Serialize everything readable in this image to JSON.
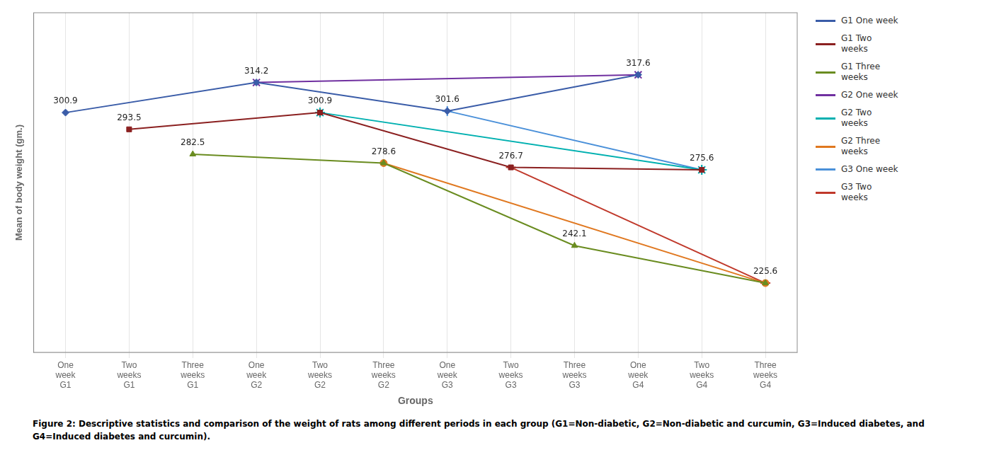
{
  "chart_data": {
    "type": "line",
    "xlabel": "Groups",
    "ylabel": "Mean of body weight (gm.)",
    "caption": "Figure 2: Descriptive statistics and comparison of the weight of rats among different periods in each group (G1=Non-diabetic, G2=Non-diabetic and curcumin, G3=Induced diabetes, and G4=Induced diabetes and curcumin).",
    "categories": [
      "One\nweek\nG1",
      "Two\nweeks\nG1",
      "Three\nweeks\nG1",
      "One\nweek\nG2",
      "Two\nweeks\nG2",
      "Three\nweeks\nG2",
      "One\nweek\nG3",
      "Two\nweeks\nG3",
      "Three\nweeks\nG3",
      "One\nweek\nG4",
      "Two\nweeks\nG4",
      "Three\nweeks\nG4"
    ],
    "series": [
      {
        "name": "G1 One week",
        "color": "#3a5ca8",
        "marker": "diamond",
        "x": [
          "One\nweek\nG1",
          "One\nweek\nG2",
          "One\nweek\nG3",
          "One\nweek\nG4"
        ],
        "values": [
          300.9,
          314.2,
          301.6,
          317.6
        ]
      },
      {
        "name": "G1 Two\nweeks",
        "color": "#8b2020",
        "marker": "square",
        "x": [
          "Two\nweeks\nG1",
          "Two\nweeks\nG2",
          "Two\nweeks\nG3",
          "Two\nweeks\nG4"
        ],
        "values": [
          293.5,
          300.9,
          276.7,
          275.6
        ]
      },
      {
        "name": "G1 Three\nweeks",
        "color": "#6a8c20",
        "marker": "triangle",
        "x": [
          "Three\nweeks\nG1",
          "Three\nweeks\nG2",
          "Three\nweeks\nG3",
          "Three\nweeks\nG4"
        ],
        "values": [
          282.5,
          278.6,
          242.1,
          225.6
        ]
      },
      {
        "name": "G2 One week",
        "color": "#7030a0",
        "marker": "x",
        "x": [
          "One\nweek\nG2",
          "One\nweek\nG4"
        ],
        "values": [
          314.2,
          317.6
        ]
      },
      {
        "name": "G2 Two\nweeks",
        "color": "#00b0b0",
        "marker": "star",
        "x": [
          "Two\nweeks\nG2",
          "Two\nweeks\nG4"
        ],
        "values": [
          300.9,
          275.6
        ]
      },
      {
        "name": "G2 Three\nweeks",
        "color": "#e07820",
        "marker": "circle",
        "x": [
          "Three\nweeks\nG2",
          "Three\nweeks\nG4"
        ],
        "values": [
          278.6,
          225.6
        ]
      },
      {
        "name": "G3 One week",
        "color": "#4a90d9",
        "marker": "plus",
        "x": [
          "One\nweek\nG3",
          "Two\nweeks\nG4"
        ],
        "values": [
          301.6,
          275.6
        ]
      },
      {
        "name": "G3 Two\nweeks",
        "color": "#c0392b",
        "marker": "hline",
        "x": [
          "Two\nweeks\nG3",
          "Three\nweeks\nG4"
        ],
        "values": [
          276.7,
          225.6
        ]
      }
    ],
    "annotations": [
      {
        "x": "One\nweek\nG1",
        "y": 300.9,
        "text": "300.9"
      },
      {
        "x": "Two\nweeks\nG1",
        "y": 293.5,
        "text": "293.5"
      },
      {
        "x": "Three\nweeks\nG1",
        "y": 282.5,
        "text": "282.5"
      },
      {
        "x": "One\nweek\nG2",
        "y": 314.2,
        "text": "314.2"
      },
      {
        "x": "Two\nweeks\nG2",
        "y": 300.9,
        "text": "300.9"
      },
      {
        "x": "Three\nweeks\nG2",
        "y": 278.6,
        "text": "278.6"
      },
      {
        "x": "One\nweek\nG3",
        "y": 301.6,
        "text": "301.6"
      },
      {
        "x": "Two\nweeks\nG3",
        "y": 276.7,
        "text": "276.7"
      },
      {
        "x": "Three\nweeks\nG3",
        "y": 242.1,
        "text": "242.1"
      },
      {
        "x": "One\nweek\nG4",
        "y": 317.6,
        "text": "317.6"
      },
      {
        "x": "Two\nweeks\nG4",
        "y": 275.6,
        "text": "275.6"
      },
      {
        "x": "Three\nweeks\nG4",
        "y": 225.6,
        "text": "225.6"
      }
    ],
    "ylim": [
      195,
      345
    ],
    "yticks": [],
    "grid": true,
    "tick_labels": "x",
    "legend": "right"
  }
}
